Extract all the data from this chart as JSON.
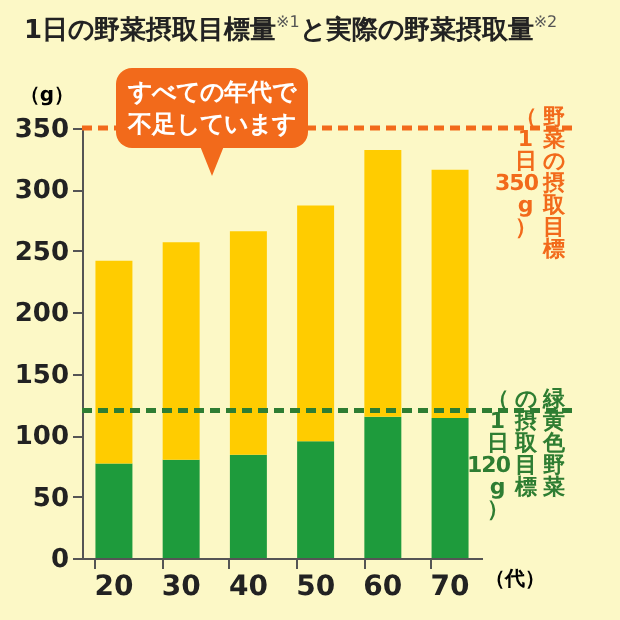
{
  "chart_data": {
    "type": "bar",
    "title": "1日の野菜摂取目標量$^{※1}$と実際の野菜摂取量$^{※2}$",
    "xlabel": "（代）",
    "ylabel": "（g）",
    "categories": [
      "20",
      "30",
      "40",
      "50",
      "60",
      "70"
    ],
    "stacked": true,
    "series": [
      {
        "color": "#1e9b3c",
        "values": [
          77,
          80,
          84,
          95,
          115,
          114
        ]
      },
      {
        "color": "#ffcc00",
        "values": [
          165,
          177,
          182,
          192,
          217,
          202
        ]
      }
    ],
    "ylim": [
      0,
      350
    ],
    "yticks": [
      0,
      50,
      100,
      150,
      200,
      250,
      300,
      350
    ],
    "ref_lines": [
      {
        "axis": "y",
        "value": 350,
        "label": "野菜の摂取目標（1日350g）",
        "color": "#f26a1b",
        "line_style": "dashed"
      },
      {
        "axis": "y",
        "value": 120,
        "label": "緑黄色野菜の摂取目標（1日120g）",
        "color": "#2e7d32",
        "line_style": "dashed"
      }
    ],
    "annotations": [
      "すべての年代で不足しています"
    ]
  }
}
